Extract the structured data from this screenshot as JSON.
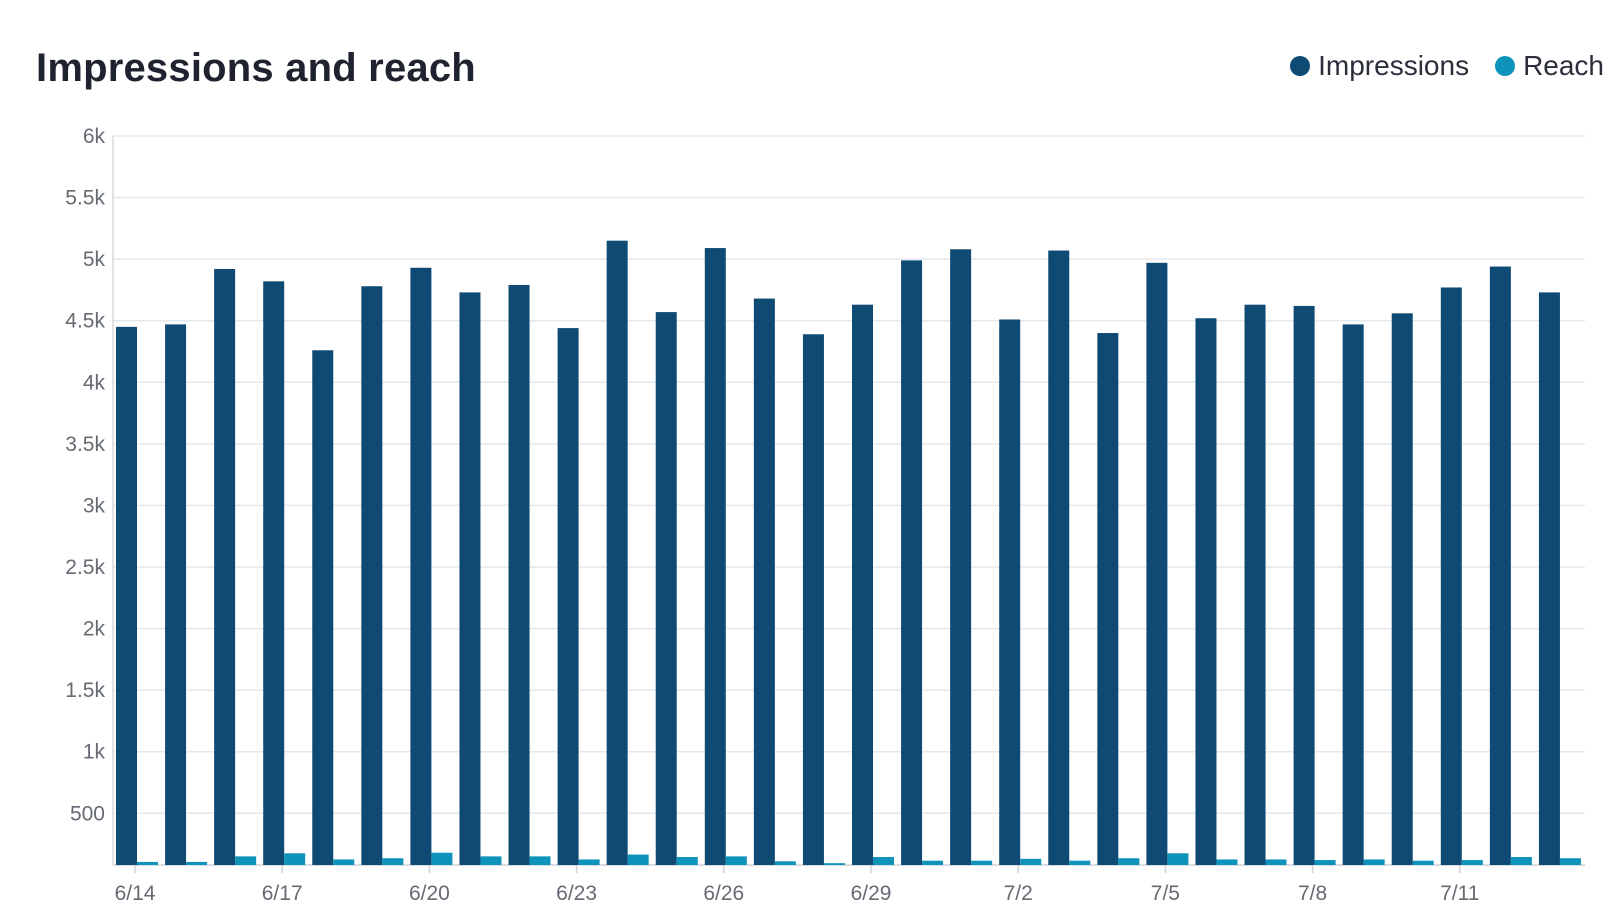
{
  "chart_data": {
    "type": "bar",
    "title": "Impressions and reach",
    "xlabel": "",
    "ylabel": "",
    "ylim": [
      80,
      6000
    ],
    "yticks": [
      500,
      1000,
      1500,
      2000,
      2500,
      3000,
      3500,
      4000,
      4500,
      5000,
      5500,
      6000
    ],
    "ytick_labels": [
      "500",
      "1k",
      "1.5k",
      "2k",
      "2.5k",
      "3k",
      "3.5k",
      "4k",
      "4.5k",
      "5k",
      "5.5k",
      "6k"
    ],
    "categories": [
      "6/14",
      "6/15",
      "6/16",
      "6/17",
      "6/18",
      "6/19",
      "6/20",
      "6/21",
      "6/22",
      "6/23",
      "6/24",
      "6/25",
      "6/26",
      "6/27",
      "6/28",
      "6/29",
      "6/30",
      "7/1",
      "7/2",
      "7/3",
      "7/4",
      "7/5",
      "7/6",
      "7/7",
      "7/8",
      "7/9",
      "7/10",
      "7/11",
      "7/12",
      "7/13"
    ],
    "xtick_labels_shown": [
      "6/14",
      "6/17",
      "6/20",
      "6/23",
      "6/26",
      "6/29",
      "7/2",
      "7/5",
      "7/8",
      "7/11"
    ],
    "grid": true,
    "legend_position": "top-right",
    "series": [
      {
        "name": "Impressions",
        "color": "#0f4a74",
        "values": [
          4450,
          4470,
          4920,
          4820,
          4260,
          4780,
          4930,
          4730,
          4790,
          4440,
          5150,
          4570,
          5090,
          4680,
          4390,
          4630,
          4990,
          5080,
          4510,
          5070,
          4400,
          4970,
          4520,
          4630,
          4620,
          4470,
          4560,
          4770,
          4940,
          4730
        ]
      },
      {
        "name": "Reach",
        "color": "#0e93bb",
        "values": [
          105,
          105,
          150,
          175,
          125,
          135,
          180,
          150,
          150,
          125,
          165,
          145,
          150,
          110,
          95,
          145,
          115,
          115,
          130,
          115,
          135,
          175,
          125,
          125,
          120,
          125,
          115,
          120,
          145,
          135
        ]
      }
    ]
  }
}
